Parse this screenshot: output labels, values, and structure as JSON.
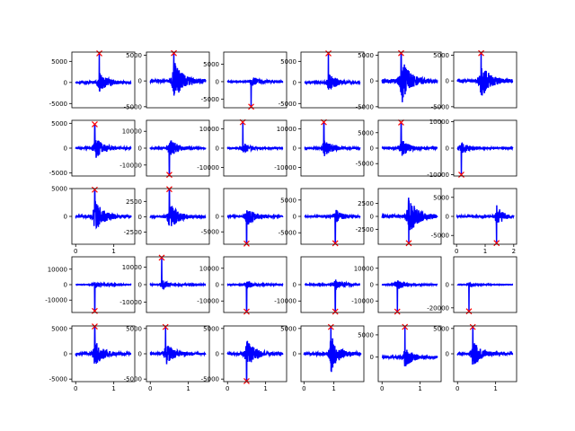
{
  "figure": {
    "background": "#ffffff",
    "line_color": "#0000ff",
    "marker_color": "#ff0000",
    "marker_symbol": "x",
    "rows": 5,
    "cols": 6
  },
  "chart_data": [
    {
      "type": "line",
      "xlim": [
        -0.1,
        1.55
      ],
      "ylim": [
        -6000,
        7200
      ],
      "yticks": [
        5000,
        0,
        -5000
      ],
      "xticks": [],
      "peak_time": 0.62,
      "peak_value": 6900,
      "duration": 1.45,
      "noise": 800,
      "seed": 11
    },
    {
      "type": "line",
      "xlim": [
        -0.1,
        1.55
      ],
      "ylim": [
        -5200,
        5600
      ],
      "yticks": [
        5000,
        0,
        -5000
      ],
      "xticks": [],
      "peak_time": 0.62,
      "peak_value": 5400,
      "duration": 1.45,
      "noise": 1200,
      "seed": 12
    },
    {
      "type": "line",
      "xlim": [
        -0.1,
        1.55
      ],
      "ylim": [
        -7500,
        8500
      ],
      "yticks": [
        5000,
        0,
        -5000
      ],
      "xticks": [],
      "peak_time": 0.62,
      "peak_value": -7200,
      "duration": 1.45,
      "noise": 500,
      "seed": 13
    },
    {
      "type": "line",
      "xlim": [
        -0.1,
        1.55
      ],
      "ylim": [
        -6000,
        7200
      ],
      "yticks": [
        5000,
        0,
        -5000
      ],
      "xticks": [],
      "peak_time": 0.62,
      "peak_value": 6900,
      "duration": 1.45,
      "noise": 700,
      "seed": 14
    },
    {
      "type": "line",
      "xlim": [
        -0.1,
        1.55
      ],
      "ylim": [
        -5200,
        5600
      ],
      "yticks": [
        5000,
        0,
        -5000
      ],
      "xticks": [],
      "peak_time": 0.5,
      "peak_value": 5400,
      "duration": 1.45,
      "noise": 1400,
      "seed": 15
    },
    {
      "type": "line",
      "xlim": [
        -0.1,
        1.55
      ],
      "ylim": [
        -5200,
        5600
      ],
      "yticks": [
        5000,
        0,
        -5000
      ],
      "xticks": [],
      "peak_time": 0.62,
      "peak_value": 5400,
      "duration": 1.45,
      "noise": 1100,
      "seed": 16
    },
    {
      "type": "line",
      "xlim": [
        -0.1,
        1.55
      ],
      "ylim": [
        -5600,
        5600
      ],
      "yticks": [
        5000,
        0,
        -5000
      ],
      "xticks": [],
      "peak_time": 0.5,
      "peak_value": 4800,
      "duration": 1.45,
      "noise": 700,
      "seed": 21
    },
    {
      "type": "line",
      "xlim": [
        -0.1,
        1.55
      ],
      "ylim": [
        -16500,
        16500
      ],
      "yticks": [
        10000,
        0,
        -10000
      ],
      "xticks": [],
      "peak_time": 0.5,
      "peak_value": -15800,
      "duration": 1.45,
      "noise": 1800,
      "seed": 22
    },
    {
      "type": "line",
      "xlim": [
        -0.1,
        1.55
      ],
      "ylim": [
        -14500,
        14500
      ],
      "yticks": [
        10000,
        0,
        -10000
      ],
      "xticks": [],
      "peak_time": 0.4,
      "peak_value": 13500,
      "duration": 1.45,
      "noise": 900,
      "seed": 23
    },
    {
      "type": "line",
      "xlim": [
        -0.1,
        1.55
      ],
      "ylim": [
        -14500,
        14500
      ],
      "yticks": [
        10000,
        0,
        -10000
      ],
      "xticks": [],
      "peak_time": 0.5,
      "peak_value": 13500,
      "duration": 1.45,
      "noise": 1400,
      "seed": 24
    },
    {
      "type": "line",
      "xlim": [
        -0.1,
        1.55
      ],
      "ylim": [
        -9000,
        9000
      ],
      "yticks": [
        5000,
        0,
        -5000
      ],
      "xticks": [],
      "peak_time": 0.5,
      "peak_value": 8300,
      "duration": 1.45,
      "noise": 900,
      "seed": 25
    },
    {
      "type": "line",
      "xlim": [
        -0.1,
        1.55
      ],
      "ylim": [
        -10500,
        10500
      ],
      "yticks": [
        10000,
        0,
        -10000
      ],
      "xticks": [],
      "peak_time": 0.1,
      "peak_value": -10000,
      "duration": 1.45,
      "noise": 700,
      "seed": 26
    },
    {
      "type": "line",
      "xlim": [
        -0.1,
        1.55
      ],
      "ylim": [
        -5000,
        5000
      ],
      "yticks": [
        5000,
        0
      ],
      "xticks": [
        0,
        1
      ],
      "peak_time": 0.5,
      "peak_value": 4800,
      "duration": 1.45,
      "noise": 900,
      "seed": 31
    },
    {
      "type": "line",
      "xlim": [
        -0.1,
        1.55
      ],
      "ylim": [
        -4500,
        4600
      ],
      "yticks": [
        2500,
        0,
        -2500
      ],
      "xticks": [],
      "peak_time": 0.5,
      "peak_value": 4500,
      "duration": 1.45,
      "noise": 700,
      "seed": 32
    },
    {
      "type": "line",
      "xlim": [
        -0.1,
        1.55
      ],
      "ylim": [
        -9000,
        9000
      ],
      "yticks": [
        0,
        -5000
      ],
      "xticks": [],
      "peak_time": 0.5,
      "peak_value": -8800,
      "duration": 1.45,
      "noise": 1000,
      "seed": 33
    },
    {
      "type": "line",
      "xlim": [
        -0.1,
        1.55
      ],
      "ylim": [
        -8500,
        8500
      ],
      "yticks": [
        5000,
        0,
        -5000
      ],
      "xticks": [],
      "peak_time": 0.8,
      "peak_value": -8200,
      "duration": 1.45,
      "noise": 700,
      "seed": 34
    },
    {
      "type": "line",
      "xlim": [
        -0.1,
        1.55
      ],
      "ylim": [
        -5400,
        5400
      ],
      "yticks": [
        2500,
        0,
        -2500
      ],
      "xticks": [],
      "peak_time": 0.7,
      "peak_value": -5200,
      "duration": 1.45,
      "noise": 1200,
      "seed": 35
    },
    {
      "type": "line",
      "xlim": [
        -0.1,
        2.1
      ],
      "ylim": [
        -7300,
        7300
      ],
      "yticks": [
        5000,
        0,
        -5000
      ],
      "xticks": [
        0,
        1,
        2
      ],
      "peak_time": 1.4,
      "peak_value": -7000,
      "duration": 2.0,
      "noise": 900,
      "seed": 36
    },
    {
      "type": "line",
      "xlim": [
        -0.1,
        1.55
      ],
      "ylim": [
        -18000,
        18000
      ],
      "yticks": [
        10000,
        0,
        -10000
      ],
      "xticks": [],
      "peak_time": 0.5,
      "peak_value": -17000,
      "duration": 1.45,
      "noise": 700,
      "seed": 41
    },
    {
      "type": "line",
      "xlim": [
        -0.1,
        1.55
      ],
      "ylim": [
        -16000,
        16000
      ],
      "yticks": [
        10000,
        0,
        -10000
      ],
      "xticks": [],
      "peak_time": 0.3,
      "peak_value": 15500,
      "duration": 1.45,
      "noise": 900,
      "seed": 42
    },
    {
      "type": "line",
      "xlim": [
        -0.1,
        1.55
      ],
      "ylim": [
        -17000,
        17000
      ],
      "yticks": [
        10000,
        0,
        -10000
      ],
      "xticks": [],
      "peak_time": 0.5,
      "peak_value": -16500,
      "duration": 1.45,
      "noise": 800,
      "seed": 43
    },
    {
      "type": "line",
      "xlim": [
        -0.1,
        1.55
      ],
      "ylim": [
        -17000,
        17000
      ],
      "yticks": [
        0,
        -10000
      ],
      "xticks": [],
      "peak_time": 0.8,
      "peak_value": -16500,
      "duration": 1.45,
      "noise": 1100,
      "seed": 44
    },
    {
      "type": "line",
      "xlim": [
        -0.1,
        1.55
      ],
      "ylim": [
        -17000,
        17000
      ],
      "yticks": [
        10000,
        0,
        -10000
      ],
      "xticks": [],
      "peak_time": 0.4,
      "peak_value": -16500,
      "duration": 1.45,
      "noise": 900,
      "seed": 45
    },
    {
      "type": "line",
      "xlim": [
        -0.1,
        1.55
      ],
      "ylim": [
        -24000,
        24000
      ],
      "yticks": [
        0,
        -20000
      ],
      "xticks": [],
      "peak_time": 0.3,
      "peak_value": -23000,
      "duration": 1.45,
      "noise": 700,
      "seed": 46
    },
    {
      "type": "line",
      "xlim": [
        -0.1,
        1.55
      ],
      "ylim": [
        -5500,
        5500
      ],
      "yticks": [
        5000,
        0,
        -5000
      ],
      "xticks": [
        0,
        1
      ],
      "peak_time": 0.5,
      "peak_value": 5400,
      "duration": 1.45,
      "noise": 800,
      "seed": 51
    },
    {
      "type": "line",
      "xlim": [
        -0.1,
        1.55
      ],
      "ylim": [
        -5500,
        5500
      ],
      "yticks": [
        5000,
        0,
        -5000
      ],
      "xticks": [
        0,
        1
      ],
      "peak_time": 0.4,
      "peak_value": 5300,
      "duration": 1.45,
      "noise": 700,
      "seed": 52
    },
    {
      "type": "line",
      "xlim": [
        -0.1,
        1.55
      ],
      "ylim": [
        -5500,
        5500
      ],
      "yticks": [
        5000,
        0,
        -5000
      ],
      "xticks": [
        0,
        1
      ],
      "peak_time": 0.5,
      "peak_value": -5400,
      "duration": 1.45,
      "noise": 900,
      "seed": 53
    },
    {
      "type": "line",
      "xlim": [
        -0.1,
        2.0
      ],
      "ylim": [
        -5500,
        5500
      ],
      "yticks": [
        5000,
        0
      ],
      "xticks": [
        0,
        1
      ],
      "peak_time": 0.9,
      "peak_value": 5300,
      "duration": 1.9,
      "noise": 1200,
      "seed": 54
    },
    {
      "type": "line",
      "xlim": [
        -0.1,
        1.55
      ],
      "ylim": [
        -5500,
        7000
      ],
      "yticks": [
        5000,
        0
      ],
      "xticks": [
        0,
        1
      ],
      "peak_time": 0.6,
      "peak_value": 6800,
      "duration": 1.45,
      "noise": 700,
      "seed": 55
    },
    {
      "type": "line",
      "xlim": [
        -0.1,
        1.55
      ],
      "ylim": [
        -5500,
        5500
      ],
      "yticks": [
        5000,
        0
      ],
      "xticks": [
        0,
        1
      ],
      "peak_time": 0.4,
      "peak_value": 5300,
      "duration": 1.45,
      "noise": 800,
      "seed": 56
    }
  ]
}
